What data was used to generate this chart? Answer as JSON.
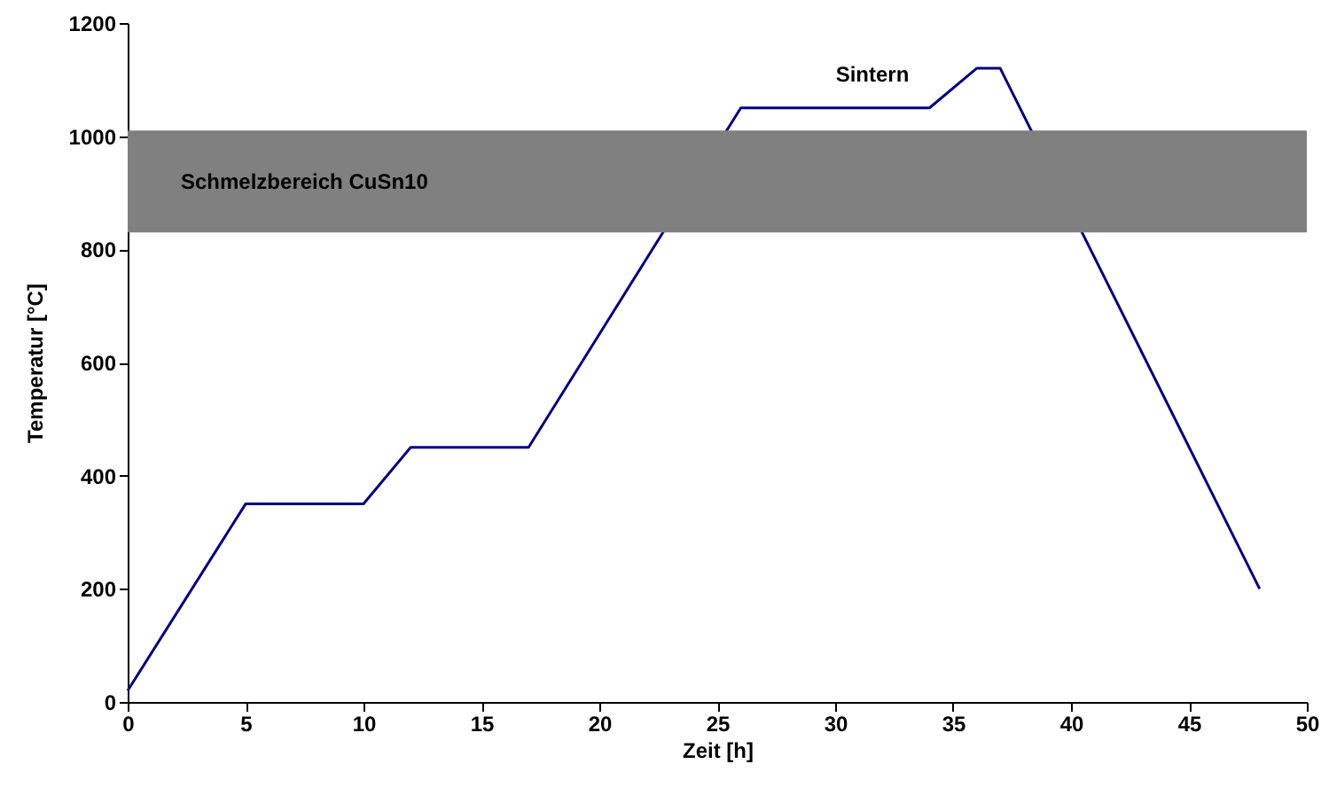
{
  "chart_data": {
    "type": "line",
    "xlabel": "Zeit [h]",
    "ylabel": "Temperatur [°C]",
    "x": [
      0,
      5,
      10,
      12,
      17,
      26,
      34,
      36,
      37,
      48
    ],
    "series": [
      {
        "color": "#000080",
        "values": [
          20,
          350,
          350,
          450,
          450,
          1050,
          1050,
          1120,
          1120,
          200
        ]
      }
    ],
    "xlim": [
      0,
      50
    ],
    "xticks": [
      0,
      5,
      10,
      15,
      20,
      25,
      30,
      35,
      40,
      45,
      50
    ],
    "ylim": [
      0,
      1200
    ],
    "yticks": [
      0,
      200,
      400,
      600,
      800,
      1000,
      1200
    ],
    "bands": [
      {
        "axis": "y",
        "from": 830,
        "to": 1010,
        "label": "Schmelzbereich CuSn10",
        "color": "#808080"
      }
    ],
    "annotations": [
      "Sintern"
    ],
    "grid": false,
    "marker": "none",
    "line_style": "solid"
  }
}
